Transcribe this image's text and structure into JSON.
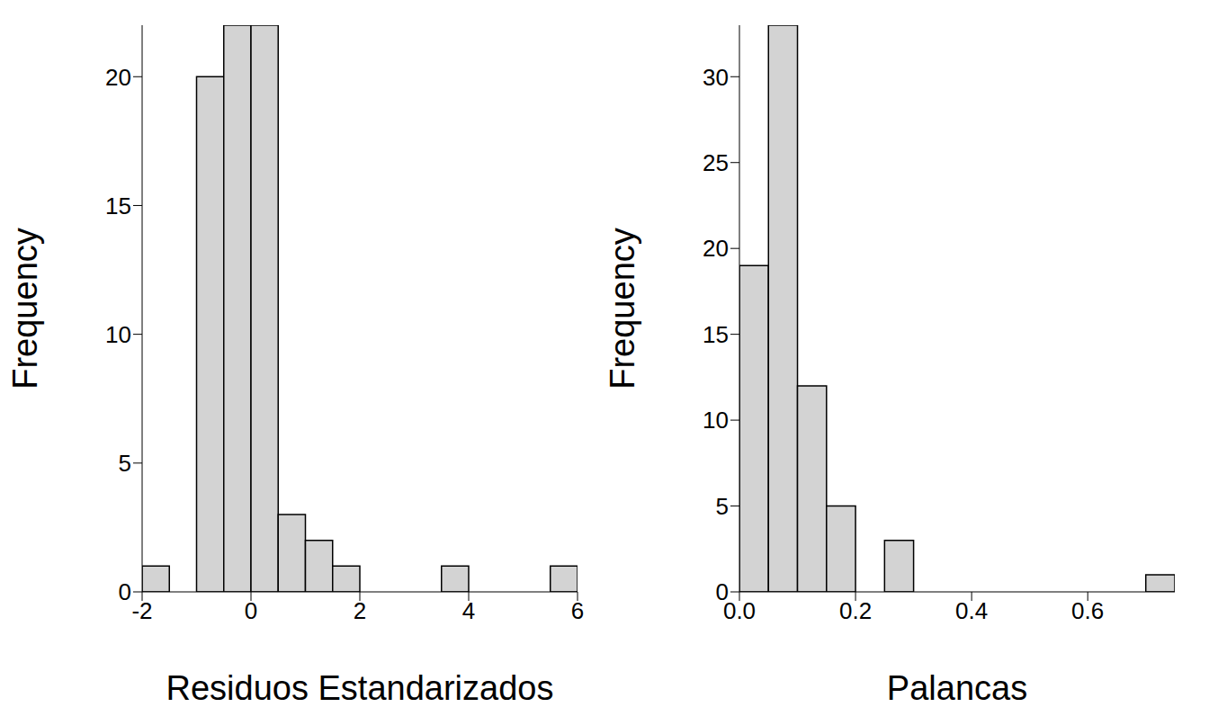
{
  "chart_data": [
    {
      "type": "histogram",
      "x_label": "Residuos Estandarizados",
      "y_label": "Frequency",
      "color": "#d3d3d3",
      "bins": [
        -2,
        -1.5,
        -1,
        -0.5,
        0,
        0.5,
        1,
        1.5,
        2,
        2.5,
        3,
        3.5,
        4,
        4.5,
        5,
        5.5,
        6
      ],
      "counts": [
        1,
        0,
        20,
        22,
        22,
        3,
        2,
        1,
        0,
        0,
        0,
        1,
        0,
        0,
        0,
        1
      ],
      "xlim": [
        -2,
        6
      ],
      "xticks": [
        -2,
        0,
        2,
        4,
        6
      ],
      "ylim": [
        0,
        22
      ],
      "yticks": [
        0,
        5,
        10,
        15,
        20
      ]
    },
    {
      "type": "histogram",
      "x_label": "Palancas",
      "y_label": "Frequency",
      "color": "#d3d3d3",
      "bins": [
        0,
        0.05,
        0.1,
        0.15,
        0.2,
        0.25,
        0.3,
        0.35,
        0.4,
        0.45,
        0.5,
        0.55,
        0.6,
        0.65,
        0.7,
        0.75
      ],
      "counts": [
        19,
        33,
        12,
        5,
        0,
        3,
        0,
        0,
        0,
        0,
        0,
        0,
        0,
        0,
        1
      ],
      "xlim": [
        0,
        0.75
      ],
      "xticks": [
        {
          "value": 0,
          "label": "0.0"
        },
        0.2,
        0.4,
        0.6
      ],
      "ylim": [
        0,
        33
      ],
      "yticks": [
        0,
        5,
        10,
        15,
        20,
        25,
        30
      ]
    }
  ]
}
